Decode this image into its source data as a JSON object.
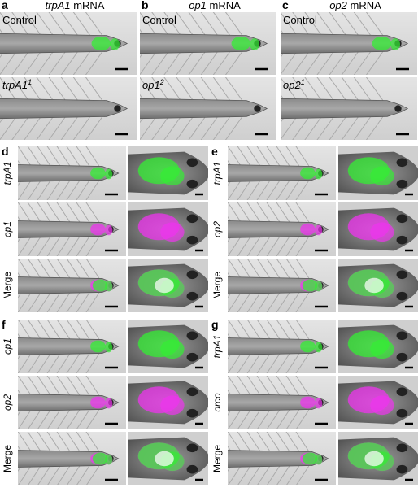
{
  "top_panels": [
    {
      "letter": "a",
      "header": {
        "gene": "trpA1",
        "suffix": "mRNA"
      },
      "rows": [
        {
          "label": "Control"
        },
        {
          "label": "trpA1",
          "sup": "1"
        }
      ]
    },
    {
      "letter": "b",
      "header": {
        "gene": "op1",
        "suffix": "mRNA"
      },
      "rows": [
        {
          "label": "Control"
        },
        {
          "label": "op1",
          "sup": "2"
        }
      ]
    },
    {
      "letter": "c",
      "header": {
        "gene": "op2",
        "suffix": "mRNA"
      },
      "rows": [
        {
          "label": "Control"
        },
        {
          "label": "op2",
          "sup": "1"
        }
      ]
    }
  ],
  "bottom_panels": [
    {
      "letter": "d",
      "rows": [
        "trpA1",
        "op1",
        "Merge"
      ]
    },
    {
      "letter": "e",
      "rows": [
        "trpA1",
        "op2",
        "Merge"
      ]
    },
    {
      "letter": "f",
      "rows": [
        "op1",
        "op2",
        "Merge"
      ]
    },
    {
      "letter": "g",
      "rows": [
        "trpA1",
        "orco",
        "Merge"
      ]
    }
  ]
}
